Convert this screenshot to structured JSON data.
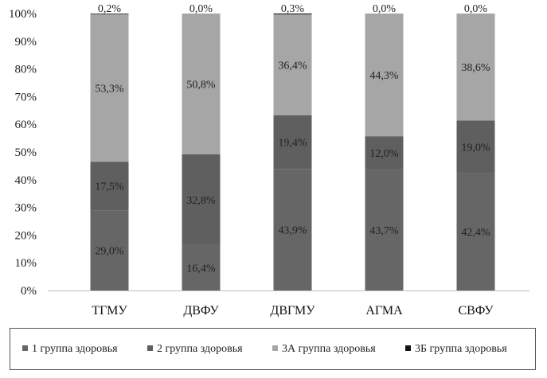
{
  "chart_data": {
    "type": "bar",
    "stacked": true,
    "categories": [
      "ТГМУ",
      "ДВФУ",
      "ДВГМУ",
      "АГМА",
      "СВФУ"
    ],
    "series": [
      {
        "name": "1 группа здоровья",
        "color": "#666666",
        "values": [
          29.0,
          16.4,
          43.9,
          43.7,
          42.4
        ],
        "labels": [
          "29,0%",
          "16,4%",
          "43,9%",
          "43,7%",
          "42,4%"
        ]
      },
      {
        "name": "2 группа здоровья",
        "color": "#5f5f5f",
        "values": [
          17.5,
          32.8,
          19.4,
          12.0,
          19.0
        ],
        "labels": [
          "17,5%",
          "32,8%",
          "19,4%",
          "12,0%",
          "19,0%"
        ]
      },
      {
        "name": "3А группа здоровья",
        "color": "#a6a6a6",
        "values": [
          53.3,
          50.8,
          36.4,
          44.3,
          38.6
        ],
        "labels": [
          "53,3%",
          "50,8%",
          "36,4%",
          "44,3%",
          "38,6%"
        ]
      },
      {
        "name": "3Б группа здоровья",
        "color": "#111111",
        "values": [
          0.2,
          0.0,
          0.3,
          0.0,
          0.0
        ],
        "labels": [
          "0,2%",
          "0,0%",
          "0,3%",
          "0,0%",
          "0,0%"
        ]
      }
    ],
    "yticks": [
      "0%",
      "10%",
      "20%",
      "30%",
      "40%",
      "50%",
      "60%",
      "70%",
      "80%",
      "90%",
      "100%"
    ],
    "ylim": [
      0,
      100
    ],
    "grid": false,
    "legend_position": "bottom"
  }
}
